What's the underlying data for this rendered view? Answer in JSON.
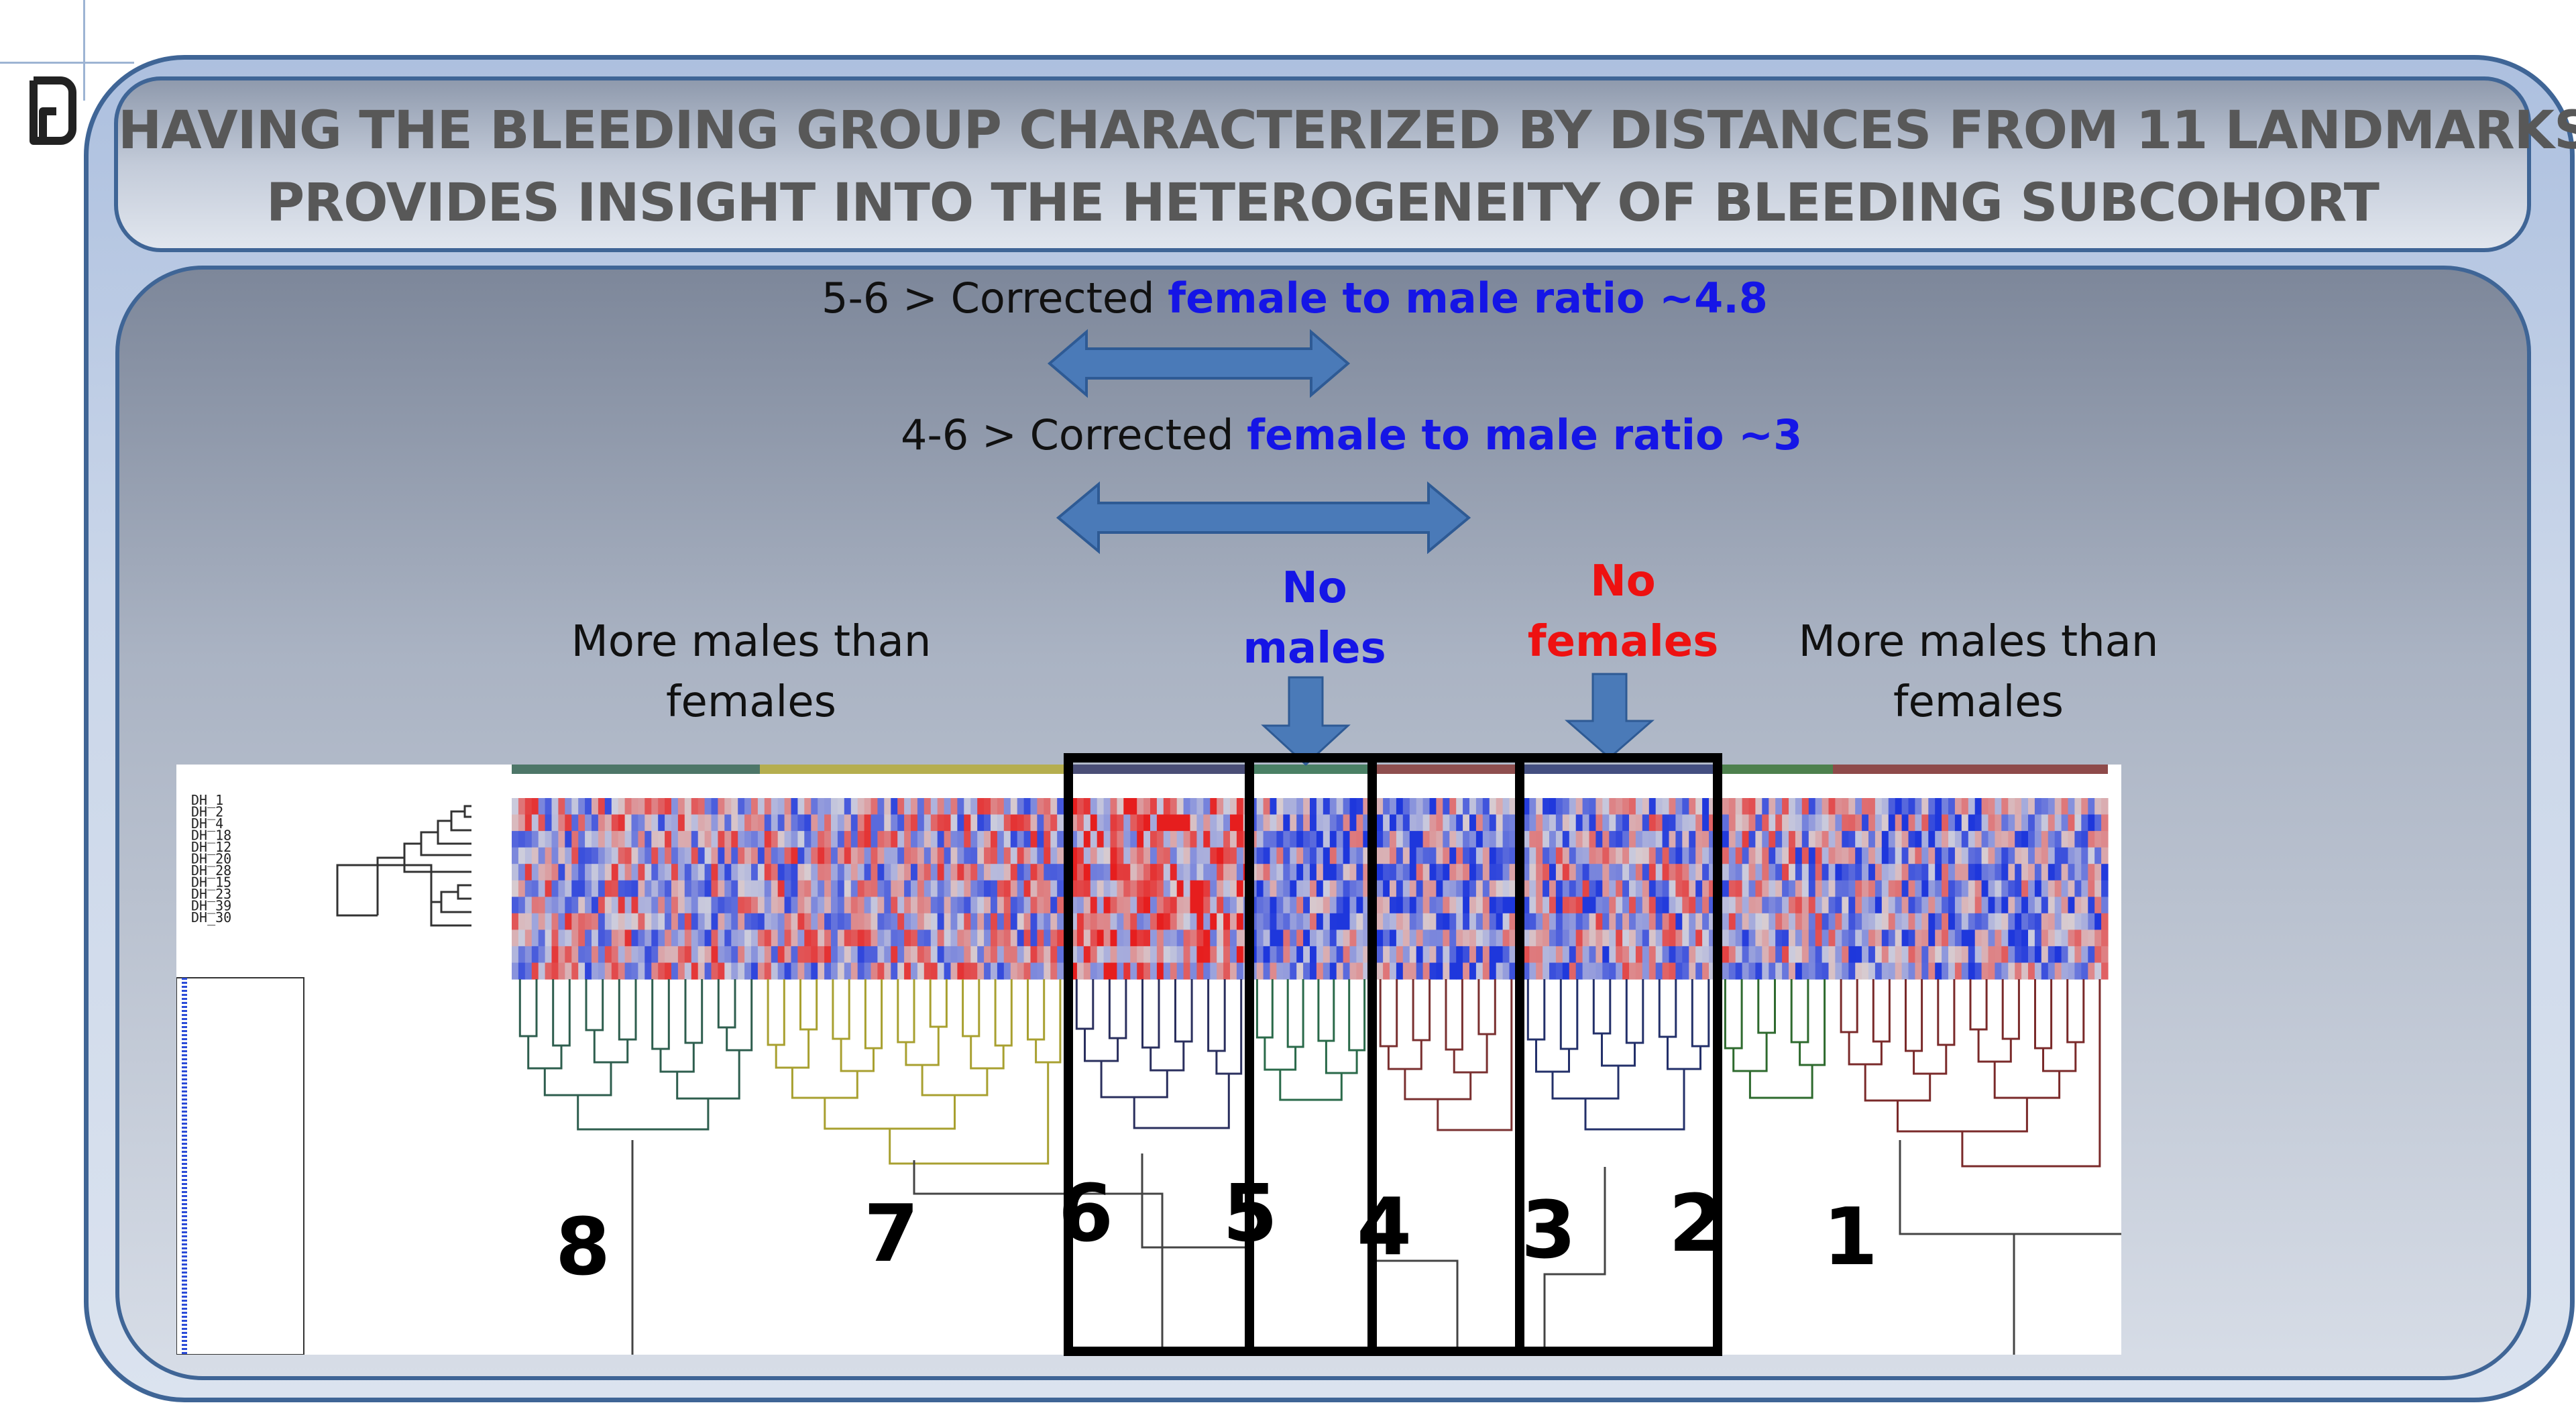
{
  "title": {
    "line1": "HAVING THE BLEEDING GROUP CHARACTERIZED BY DISTANCES FROM 11 LANDMARKS",
    "line2": "PROVIDES INSIGHT INTO THE HETEROGENEITY OF BLEEDING SUBCOHORT"
  },
  "ratios": [
    {
      "prefix": "5-6 > Corrected ",
      "highlight": "female to male ratio ~4.8"
    },
    {
      "prefix": "4-6 > Corrected ",
      "highlight": "female to male ratio ~3"
    }
  ],
  "labels": {
    "more_males_left": [
      "More males than",
      "females"
    ],
    "more_males_right": [
      "More males than",
      "females"
    ],
    "no_males": [
      "No",
      "males"
    ],
    "no_females": [
      "No",
      "females"
    ]
  },
  "row_labels": [
    "DH_1",
    "DH_2",
    "DH_4",
    "DH_18",
    "DH_12",
    "DH_20",
    "DH_28",
    "DH_15",
    "DH_23",
    "DH_39",
    "DH_30"
  ],
  "clusters": [
    "8",
    "7",
    "6",
    "5",
    "4",
    "3",
    "2",
    "1"
  ],
  "colors": {
    "frame": "#3f6596",
    "arrow": "#4a7ab8",
    "heat_red": "#e02020",
    "heat_blue": "#1e3fd8",
    "cluster_8": "#2e5e4e",
    "cluster_7": "#a8a030",
    "cluster_6": "#2a2f5e",
    "cluster_5": "#2a6a4a",
    "cluster_4": "#7a3030",
    "cluster_3": "#23306a",
    "cluster_2": "#2e6a2e",
    "cluster_1": "#7a2a2a"
  }
}
